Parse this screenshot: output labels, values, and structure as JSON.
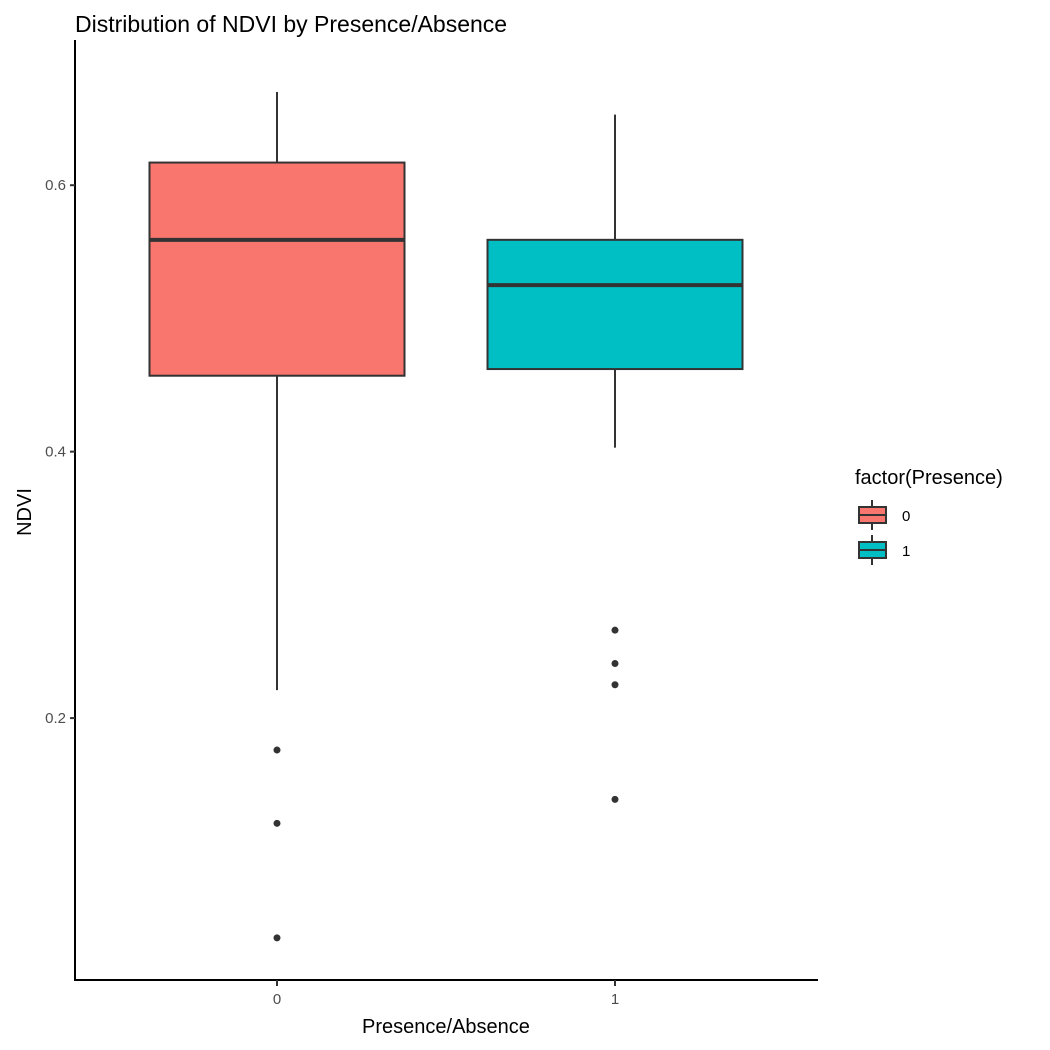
{
  "chart_data": {
    "type": "boxplot",
    "title": "Distribution of NDVI by Presence/Absence",
    "xlabel": "Presence/Absence",
    "ylabel": "NDVI",
    "categories": [
      "0",
      "1"
    ],
    "ylim": [
      0.0034,
      0.709
    ],
    "yticks": [
      0.2,
      0.4,
      0.6
    ],
    "ytick_labels": [
      "0.2",
      "0.4",
      "0.6"
    ],
    "grid": false,
    "boxes": [
      {
        "category": "0",
        "whisker_low": 0.221,
        "q1": 0.457,
        "median": 0.559,
        "q3": 0.617,
        "whisker_high": 0.67,
        "outliers": [
          0.176,
          0.121,
          0.035
        ],
        "color": "#F8766D"
      },
      {
        "category": "1",
        "whisker_low": 0.403,
        "q1": 0.462,
        "median": 0.525,
        "q3": 0.559,
        "whisker_high": 0.653,
        "outliers": [
          0.266,
          0.241,
          0.225,
          0.139
        ],
        "color": "#00BFC4"
      }
    ],
    "legend": {
      "title": "factor(Presence)",
      "placement": "right",
      "entries": [
        "0",
        "1"
      ]
    }
  }
}
